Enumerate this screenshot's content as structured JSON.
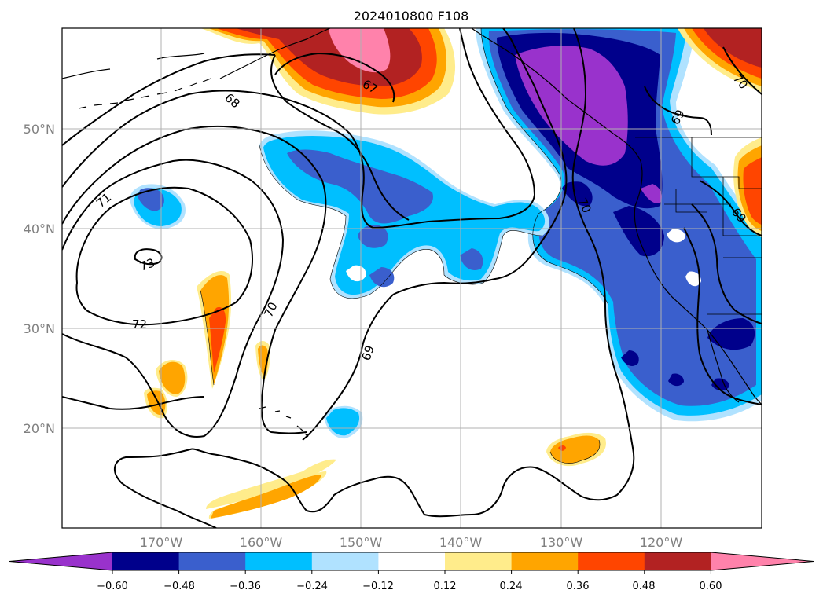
{
  "title": "2024010800 F108",
  "map": {
    "lon_labels": [
      "170°W",
      "160°W",
      "150°W",
      "140°W",
      "130°W",
      "120°W"
    ],
    "lat_labels": [
      "50°N",
      "40°N",
      "30°N",
      "20°N"
    ],
    "contour_labels": [
      "67",
      "68",
      "69",
      "69",
      "70",
      "70",
      "70",
      "71",
      "72",
      "73",
      "69"
    ]
  },
  "colorbar": {
    "ticks": [
      "−0.60",
      "−0.48",
      "−0.36",
      "−0.24",
      "−0.12",
      "0.12",
      "0.24",
      "0.36",
      "0.48",
      "0.60"
    ],
    "colors": [
      "#9932cc",
      "#00008b",
      "#3a5fcd",
      "#00bfff",
      "#b0e2ff",
      "#ffffff",
      "#ffec8b",
      "#ffa500",
      "#ff4500",
      "#b22222",
      "#ff82ab"
    ]
  }
}
